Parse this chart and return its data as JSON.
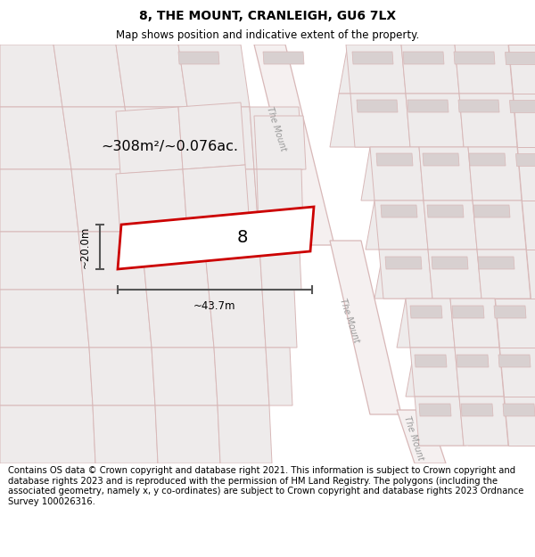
{
  "title": "8, THE MOUNT, CRANLEIGH, GU6 7LX",
  "subtitle": "Map shows position and indicative extent of the property.",
  "footer": "Contains OS data © Crown copyright and database right 2021. This information is subject to Crown copyright and database rights 2023 and is reproduced with the permission of HM Land Registry. The polygons (including the associated geometry, namely x, y co-ordinates) are subject to Crown copyright and database rights 2023 Ordnance Survey 100026316.",
  "area_label": "~308m²/~0.076ac.",
  "width_label": "~43.7m",
  "height_label": "~20.0m",
  "plot_number": "8",
  "map_bg": "#eeebeb",
  "road_color": "#d8b8b8",
  "plot_line_color": "#cc0000",
  "building_fill": "#d8d0d0",
  "road_fill": "#f5f0f0",
  "dim_color": "#555555",
  "title_fontsize": 10,
  "subtitle_fontsize": 8.5,
  "footer_fontsize": 7.2,
  "road_label_color": "#aaaaaa",
  "parcel_lw": 0.7,
  "road_lw": 0.9
}
